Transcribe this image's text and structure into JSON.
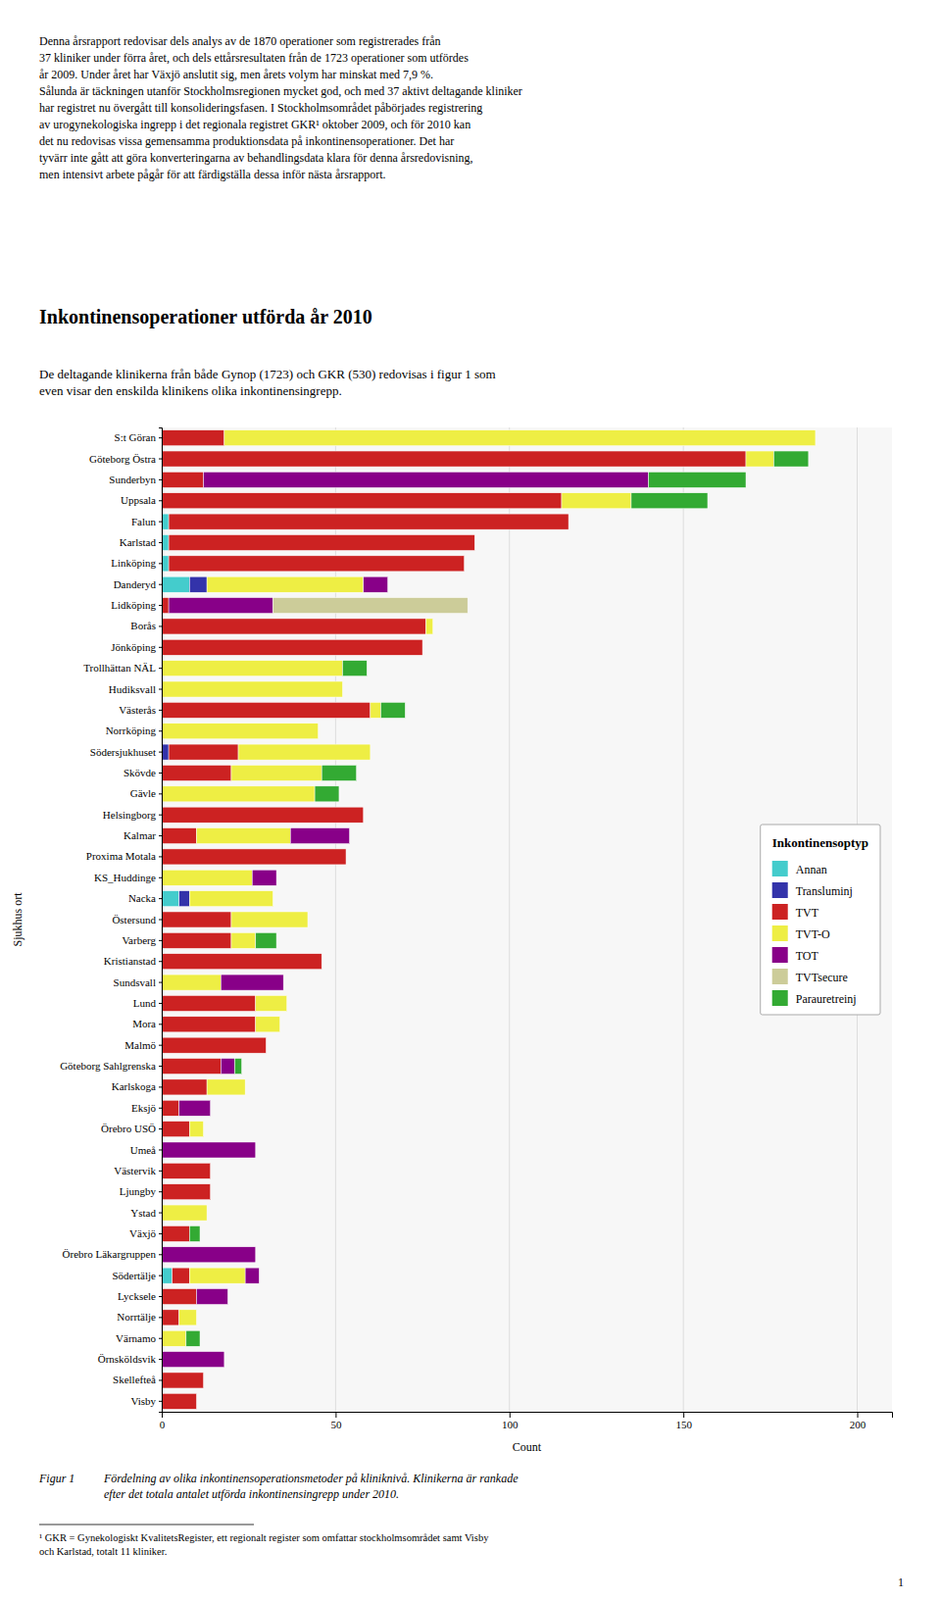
{
  "intro_text": [
    "Denna årsrapport redovisar dels analys av de 1870 operationer som registrerades från",
    "37 kliniker under förra året, och dels ettårsresultaten från de 1723 operationer som utfördes",
    "år 2009. Under året har Växjö anslutit sig, men årets volym har minskat med 7,9 %.",
    "Sålunda är täckningen utanför Stockholmsregionen mycket god, och med 37 aktivt deltagande kliniker",
    "har registret nu övergått till konsolideringsfasen. I Stockholmsområdet påbörjades registrering",
    "av urogynekologiska ingrepp i det regionala registret GKR¹ oktober 2009, och för 2010 kan",
    "det nu redovisas vissa gemensamma produktionsdata på inkontinensoperationer. Det har",
    "tyvärr inte gått att göra konverteringarna av behandlingsdata klara för denna årsredovisning,",
    "men intensivt arbete pågår för att färdigställa dessa inför nästa årsrapport."
  ],
  "caption": {
    "label": "Figur 1",
    "lines": [
      "Fördelning av olika inkontinensoperationsmetoder på kliniknivå. Klinikerna är rankade",
      "efter det totala antalet utförda inkontinensingrepp under 2010."
    ]
  },
  "footnote": [
    "¹ GKR = Gynekologiskt KvalitetsRegister, ett regionalt register som omfattar stockholmsområdet samt Visby",
    "och Karlstad, totalt 11 kliniker."
  ],
  "page_number": "1",
  "chart_data": {
    "type": "bar",
    "orientation": "horizontal",
    "stacked": true,
    "title": "Inkontinensoperationer utförda år 2010",
    "subtitle": [
      "De deltagande klinikerna från både Gynop (1723) och GKR (530) redovisas i figur 1 som",
      "even visar den enskilda klinikens olika inkontinensingrepp."
    ],
    "xlabel": "Count",
    "ylabel": "Sjukhus ort",
    "legend_title": "Inkontinensoptyp",
    "legend": "right",
    "grid": true,
    "xlim": [
      0,
      210
    ],
    "xticks": [
      0,
      50,
      100,
      150,
      200
    ],
    "categories": [
      "S:t Göran",
      "Göteborg Östra",
      "Sunderbyn",
      "Uppsala",
      "Falun",
      "Karlstad",
      "Linköping",
      "Danderyd",
      "Lidköping",
      "Borås",
      "Jönköping",
      "Trollhättan NÄL",
      "Hudiksvall",
      "Västerås",
      "Norrköping",
      "Södersjukhuset",
      "Skövde",
      "Gävle",
      "Helsingborg",
      "Kalmar",
      "Proxima Motala",
      "KS_Huddinge",
      "Nacka",
      "Östersund",
      "Varberg",
      "Kristianstad",
      "Sundsvall",
      "Lund",
      "Mora",
      "Malmö",
      "Göteborg Sahlgrenska",
      "Karlskoga",
      "Eksjö",
      "Örebro USÖ",
      "Umeå",
      "Västervik",
      "Ljungby",
      "Ystad",
      "Växjö",
      "Örebro Läkargruppen",
      "Södertälje",
      "Lycksele",
      "Norrtälje",
      "Värnamo",
      "Örnsköldsvik",
      "Skellefteå",
      "Visby"
    ],
    "series": [
      {
        "name": "Annan",
        "color": "#44CCCC",
        "values": [
          0,
          0,
          0,
          0,
          2,
          2,
          2,
          8,
          0,
          0,
          0,
          0,
          0,
          0,
          0,
          0,
          0,
          0,
          0,
          0,
          0,
          0,
          5,
          0,
          0,
          0,
          0,
          0,
          0,
          0,
          0,
          0,
          0,
          0,
          0,
          0,
          0,
          0,
          0,
          0,
          3,
          0,
          0,
          0,
          0,
          0,
          0
        ]
      },
      {
        "name": "Transluminj",
        "color": "#3333AA",
        "values": [
          0,
          0,
          0,
          0,
          0,
          0,
          0,
          5,
          0,
          0,
          0,
          0,
          0,
          0,
          0,
          2,
          0,
          0,
          0,
          0,
          0,
          0,
          3,
          0,
          0,
          0,
          0,
          0,
          0,
          0,
          0,
          0,
          0,
          0,
          0,
          0,
          0,
          0,
          0,
          0,
          0,
          0,
          0,
          0,
          0,
          0,
          0
        ]
      },
      {
        "name": "TVT",
        "color": "#CC2222",
        "values": [
          18,
          168,
          12,
          115,
          115,
          88,
          85,
          0,
          2,
          76,
          75,
          0,
          0,
          60,
          0,
          20,
          20,
          0,
          58,
          10,
          53,
          0,
          0,
          20,
          20,
          46,
          0,
          27,
          27,
          30,
          17,
          13,
          5,
          8,
          0,
          14,
          14,
          0,
          8,
          0,
          5,
          10,
          5,
          0,
          0,
          12,
          10
        ]
      },
      {
        "name": "TVT-O",
        "color": "#EEEE44",
        "values": [
          170,
          8,
          0,
          20,
          0,
          0,
          0,
          45,
          0,
          2,
          0,
          52,
          52,
          3,
          45,
          38,
          26,
          44,
          0,
          27,
          0,
          26,
          24,
          22,
          7,
          0,
          17,
          9,
          7,
          0,
          0,
          11,
          0,
          4,
          0,
          0,
          0,
          13,
          0,
          0,
          16,
          0,
          5,
          7,
          0,
          0,
          0
        ]
      },
      {
        "name": "TOT",
        "color": "#880088",
        "values": [
          0,
          0,
          128,
          0,
          0,
          0,
          0,
          7,
          30,
          0,
          0,
          0,
          0,
          0,
          0,
          0,
          0,
          0,
          0,
          17,
          0,
          7,
          0,
          0,
          0,
          0,
          18,
          0,
          0,
          0,
          4,
          0,
          9,
          0,
          27,
          0,
          0,
          0,
          0,
          27,
          4,
          9,
          0,
          0,
          18,
          0,
          0
        ]
      },
      {
        "name": "TVTsecure",
        "color": "#CCCC99",
        "values": [
          0,
          0,
          0,
          0,
          0,
          0,
          0,
          0,
          56,
          0,
          0,
          0,
          0,
          0,
          0,
          0,
          0,
          0,
          0,
          0,
          0,
          0,
          0,
          0,
          0,
          0,
          0,
          0,
          0,
          0,
          0,
          0,
          0,
          0,
          0,
          0,
          0,
          0,
          0,
          0,
          0,
          0,
          0,
          0,
          0,
          0,
          0
        ]
      },
      {
        "name": "Parauretreinj",
        "color": "#33AA33",
        "values": [
          0,
          10,
          28,
          22,
          0,
          0,
          0,
          0,
          0,
          0,
          0,
          7,
          0,
          7,
          0,
          0,
          10,
          7,
          0,
          0,
          0,
          0,
          0,
          0,
          6,
          0,
          0,
          0,
          0,
          0,
          2,
          0,
          0,
          0,
          0,
          0,
          0,
          0,
          3,
          0,
          0,
          0,
          0,
          4,
          0,
          0,
          0
        ]
      }
    ]
  }
}
